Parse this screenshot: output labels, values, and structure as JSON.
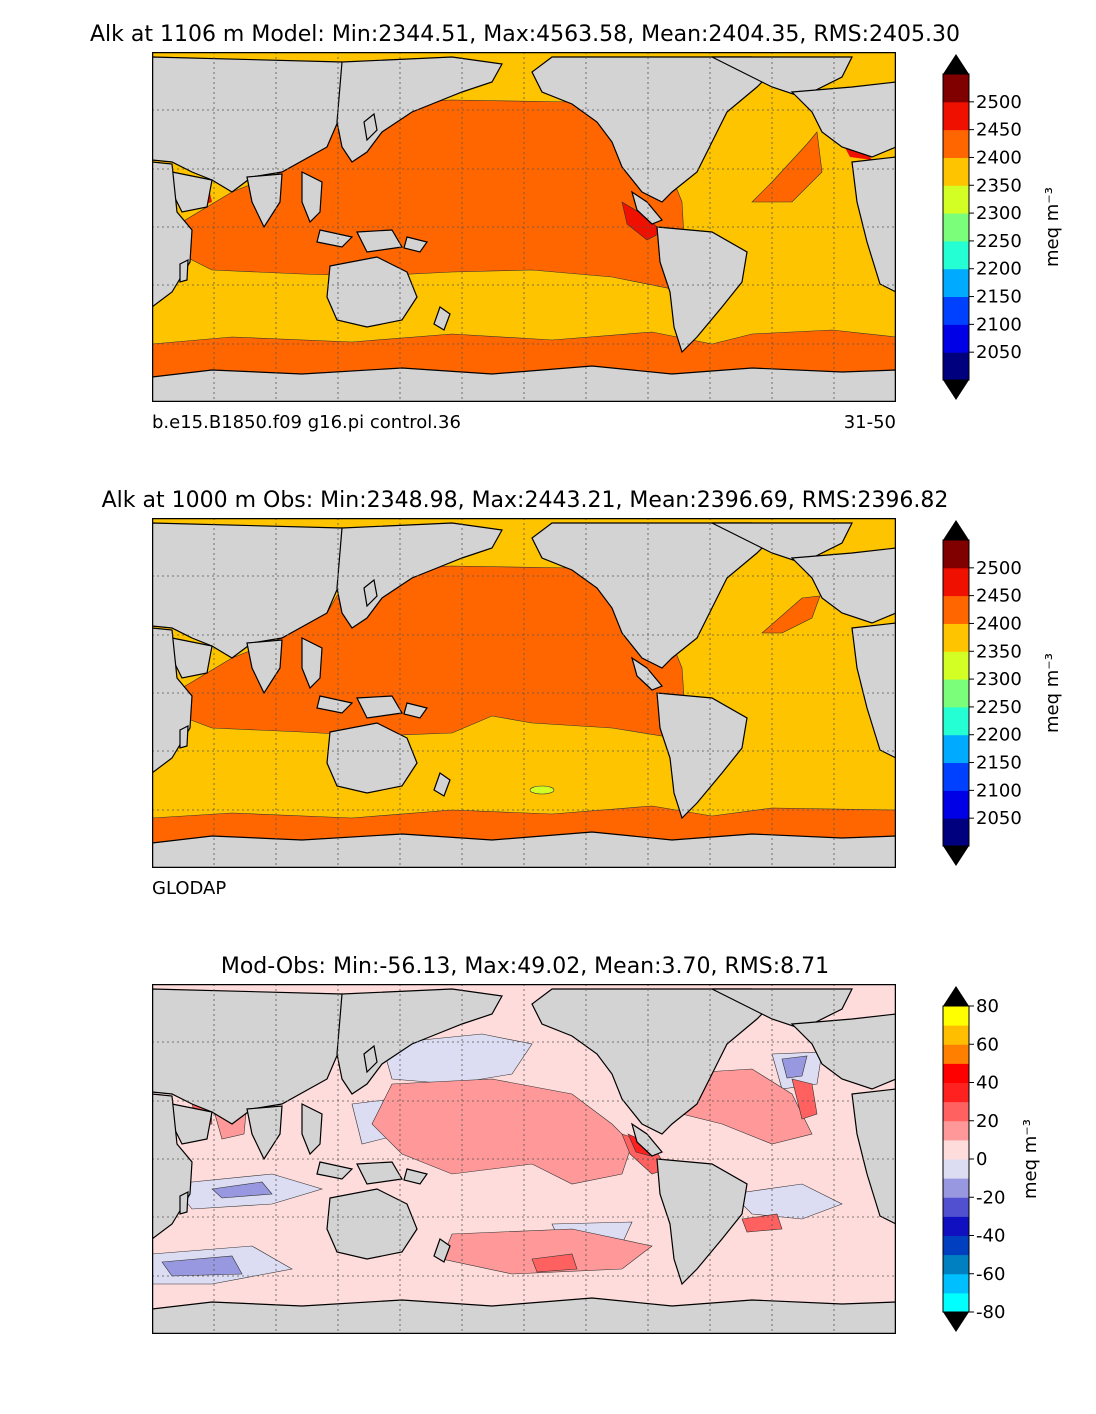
{
  "colors": {
    "land": "#d3d3d3",
    "seaice": "#ffffff",
    "grid": "#555555"
  },
  "panels": [
    {
      "id": "model",
      "title": "Alk at 1106 m Model: Min:2344.51, Max:4563.58, Mean:2404.35, RMS:2405.30",
      "sub_left": "b.e15.B1850.f09 g16.pi control.36",
      "sub_right": "31-50",
      "colorbar": {
        "unit": "meq m⁻³",
        "ticks": [
          "2050",
          "2100",
          "2150",
          "2200",
          "2250",
          "2300",
          "2350",
          "2400",
          "2450",
          "2500"
        ],
        "colors": [
          "#00007f",
          "#0000e6",
          "#0040ff",
          "#00aaff",
          "#24ffd4",
          "#7bff7b",
          "#d4ff24",
          "#ffc400",
          "#ff6600",
          "#f01000",
          "#800000"
        ],
        "over": "#000000",
        "under": "#000000"
      }
    },
    {
      "id": "obs",
      "title": "Alk at 1000 m Obs: Min:2348.98, Max:2443.21, Mean:2396.69, RMS:2396.82",
      "sub_left": "GLODAP",
      "sub_right": "",
      "colorbar": {
        "unit": "meq m⁻³",
        "ticks": [
          "2050",
          "2100",
          "2150",
          "2200",
          "2250",
          "2300",
          "2350",
          "2400",
          "2450",
          "2500"
        ],
        "colors": [
          "#00007f",
          "#0000e6",
          "#0040ff",
          "#00aaff",
          "#24ffd4",
          "#7bff7b",
          "#d4ff24",
          "#ffc400",
          "#ff6600",
          "#f01000",
          "#800000"
        ],
        "over": "#000000",
        "under": "#000000"
      }
    },
    {
      "id": "diff",
      "title": "Mod-Obs: Min:-56.13, Max:49.02, Mean:3.70, RMS:8.71",
      "sub_left": "",
      "sub_right": "",
      "colorbar": {
        "unit": "meq m⁻³",
        "ticks": [
          "-80",
          "-60",
          "-40",
          "-20",
          "0",
          "20",
          "40",
          "60",
          "80"
        ],
        "colors": [
          "#00ffff",
          "#00bfff",
          "#0080c0",
          "#0040c0",
          "#1010c0",
          "#5050d0",
          "#9898e0",
          "#dcdcf2",
          "#ffdcdc",
          "#ff9898",
          "#ff6060",
          "#ff2020",
          "#ff0000",
          "#ff8000",
          "#ffbf00",
          "#ffff00"
        ],
        "over": "#000000",
        "under": "#000000"
      }
    }
  ]
}
